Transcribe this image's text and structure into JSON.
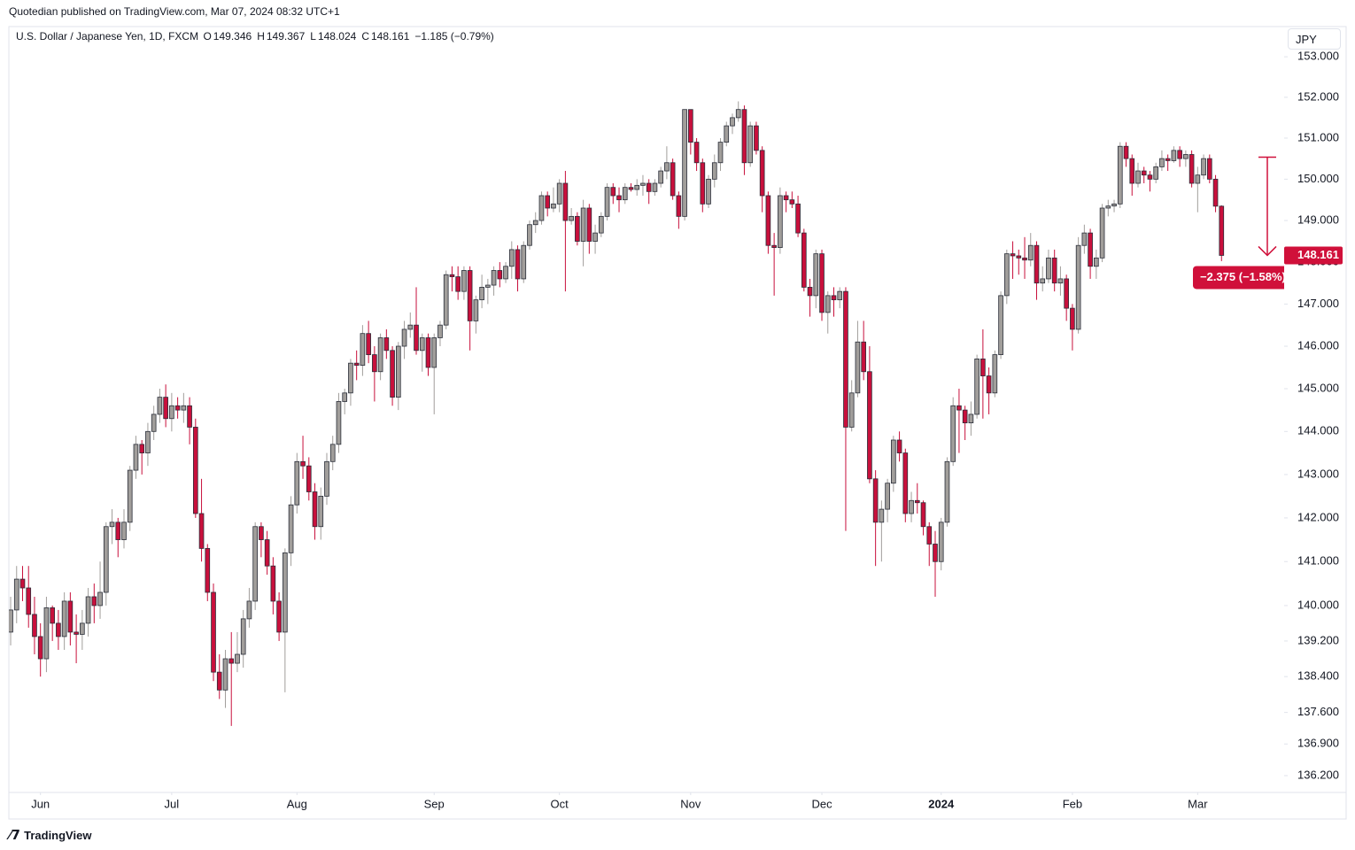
{
  "header": {
    "publisher": "Quotedian published on TradingView.com, Mar 07, 2024 08:32 UTC+1",
    "currency_button": "JPY",
    "footer": "TradingView"
  },
  "chart_data": {
    "type": "candlestick",
    "title": "U.S. Dollar / Japanese Yen, 1D, FXCM",
    "ohlc_labels": [
      "O",
      "H",
      "L",
      "C"
    ],
    "change_label": "−1.185 (−0.79%)",
    "up_color": "#a19e9b",
    "down_color": "#c8103c",
    "log": true,
    "grid": false,
    "candles": [
      [
        139.4,
        140.2,
        139.1,
        139.9
      ],
      [
        139.9,
        140.9,
        139.6,
        140.6
      ],
      [
        140.6,
        140.9,
        140.1,
        140.4
      ],
      [
        140.4,
        140.9,
        139.5,
        139.8
      ],
      [
        139.8,
        140.2,
        138.9,
        139.3
      ],
      [
        139.3,
        139.6,
        138.4,
        138.8
      ],
      [
        138.8,
        140.2,
        138.5,
        139.95
      ],
      [
        139.95,
        140.0,
        139.2,
        139.6
      ],
      [
        139.6,
        139.9,
        139.0,
        139.3
      ],
      [
        139.3,
        140.3,
        139.0,
        140.1
      ],
      [
        140.1,
        140.3,
        139.1,
        139.4
      ],
      [
        139.4,
        139.8,
        138.7,
        139.35
      ],
      [
        139.35,
        139.9,
        139.0,
        139.6
      ],
      [
        139.6,
        140.4,
        139.3,
        140.2
      ],
      [
        140.2,
        140.5,
        139.6,
        140.0
      ],
      [
        140.0,
        141.0,
        139.7,
        140.3
      ],
      [
        140.3,
        141.9,
        140.0,
        141.8
      ],
      [
        141.8,
        142.2,
        141.4,
        141.9
      ],
      [
        141.9,
        142.0,
        141.1,
        141.5
      ],
      [
        141.5,
        142.2,
        141.3,
        141.9
      ],
      [
        141.9,
        143.2,
        141.7,
        143.1
      ],
      [
        143.1,
        143.9,
        142.9,
        143.7
      ],
      [
        143.7,
        143.8,
        143.0,
        143.5
      ],
      [
        143.5,
        144.2,
        143.2,
        144.0
      ],
      [
        144.0,
        144.6,
        143.8,
        144.4
      ],
      [
        144.4,
        145.0,
        144.2,
        144.8
      ],
      [
        144.8,
        145.1,
        144.1,
        144.3
      ],
      [
        144.3,
        144.9,
        144.0,
        144.6
      ],
      [
        144.6,
        144.8,
        144.3,
        144.5
      ],
      [
        144.5,
        144.9,
        144.2,
        144.6
      ],
      [
        144.6,
        144.8,
        143.7,
        144.1
      ],
      [
        144.1,
        144.3,
        142.0,
        142.1
      ],
      [
        142.1,
        142.9,
        141.0,
        141.3
      ],
      [
        141.3,
        141.4,
        140.1,
        140.3
      ],
      [
        140.3,
        140.5,
        138.3,
        138.5
      ],
      [
        138.5,
        138.9,
        137.9,
        138.1
      ],
      [
        138.1,
        139.0,
        137.7,
        138.8
      ],
      [
        138.8,
        139.4,
        137.3,
        138.7
      ],
      [
        138.7,
        139.4,
        138.5,
        138.9
      ],
      [
        138.9,
        139.9,
        138.6,
        139.7
      ],
      [
        139.7,
        140.4,
        139.5,
        140.1
      ],
      [
        140.1,
        141.9,
        139.9,
        141.8
      ],
      [
        141.8,
        141.9,
        141.1,
        141.5
      ],
      [
        141.5,
        141.7,
        140.7,
        140.9
      ],
      [
        140.9,
        141.1,
        139.8,
        140.1
      ],
      [
        140.1,
        140.3,
        139.2,
        139.4
      ],
      [
        139.4,
        141.3,
        138.05,
        141.2
      ],
      [
        141.2,
        142.5,
        140.9,
        142.3
      ],
      [
        142.3,
        143.5,
        142.1,
        143.3
      ],
      [
        143.3,
        143.9,
        142.9,
        143.2
      ],
      [
        143.2,
        143.4,
        142.4,
        142.6
      ],
      [
        142.6,
        142.8,
        141.5,
        141.8
      ],
      [
        141.8,
        142.7,
        141.5,
        142.5
      ],
      [
        142.5,
        143.5,
        142.3,
        143.3
      ],
      [
        143.3,
        143.9,
        143.1,
        143.7
      ],
      [
        143.7,
        144.9,
        143.5,
        144.7
      ],
      [
        144.7,
        145.0,
        144.4,
        144.9
      ],
      [
        144.9,
        145.7,
        144.6,
        145.6
      ],
      [
        145.6,
        145.9,
        145.2,
        145.55
      ],
      [
        145.55,
        146.5,
        145.3,
        146.3
      ],
      [
        146.3,
        146.6,
        145.6,
        145.8
      ],
      [
        145.8,
        146.0,
        144.7,
        145.4
      ],
      [
        145.4,
        146.3,
        145.2,
        146.2
      ],
      [
        146.2,
        146.4,
        145.7,
        145.9
      ],
      [
        145.9,
        146.0,
        144.6,
        144.8
      ],
      [
        144.8,
        146.1,
        144.5,
        146.0
      ],
      [
        146.0,
        146.6,
        145.7,
        146.4
      ],
      [
        146.4,
        146.8,
        146.2,
        146.5
      ],
      [
        146.5,
        147.4,
        145.8,
        145.9
      ],
      [
        145.9,
        146.3,
        145.4,
        146.2
      ],
      [
        146.2,
        146.3,
        145.3,
        145.5
      ],
      [
        145.5,
        146.3,
        144.4,
        146.2
      ],
      [
        146.2,
        146.6,
        146.0,
        146.5
      ],
      [
        146.5,
        147.8,
        146.4,
        147.7
      ],
      [
        147.7,
        147.9,
        147.3,
        147.65
      ],
      [
        147.65,
        147.9,
        147.1,
        147.3
      ],
      [
        147.3,
        147.9,
        147.1,
        147.8
      ],
      [
        147.8,
        147.9,
        145.9,
        146.6
      ],
      [
        146.6,
        147.2,
        146.3,
        147.1
      ],
      [
        147.1,
        147.7,
        146.9,
        147.4
      ],
      [
        147.4,
        147.6,
        147.0,
        147.45
      ],
      [
        147.45,
        147.9,
        147.2,
        147.8
      ],
      [
        147.8,
        148.0,
        147.4,
        147.6
      ],
      [
        147.6,
        148.0,
        147.5,
        147.9
      ],
      [
        147.9,
        148.5,
        147.6,
        148.3
      ],
      [
        148.3,
        148.4,
        147.3,
        147.6
      ],
      [
        147.6,
        148.5,
        147.5,
        148.4
      ],
      [
        148.4,
        149.0,
        148.3,
        148.9
      ],
      [
        148.9,
        149.2,
        148.7,
        149.0
      ],
      [
        149.0,
        149.7,
        148.9,
        149.6
      ],
      [
        149.6,
        149.7,
        149.1,
        149.3
      ],
      [
        149.3,
        149.8,
        149.2,
        149.4
      ],
      [
        149.4,
        150.0,
        149.2,
        149.9
      ],
      [
        149.9,
        150.2,
        147.3,
        149.0
      ],
      [
        149.0,
        149.3,
        148.9,
        149.1
      ],
      [
        149.1,
        149.2,
        148.4,
        148.5
      ],
      [
        148.5,
        149.5,
        147.9,
        149.3
      ],
      [
        149.3,
        149.4,
        148.2,
        148.5
      ],
      [
        148.5,
        148.9,
        148.2,
        148.7
      ],
      [
        148.7,
        149.2,
        148.6,
        149.1
      ],
      [
        149.1,
        149.9,
        149.0,
        149.8
      ],
      [
        149.8,
        149.9,
        149.4,
        149.6
      ],
      [
        149.6,
        149.8,
        149.2,
        149.5
      ],
      [
        149.5,
        149.9,
        149.4,
        149.8
      ],
      [
        149.8,
        149.9,
        149.7,
        149.75
      ],
      [
        149.75,
        150.0,
        149.6,
        149.85
      ],
      [
        149.85,
        150.1,
        149.6,
        149.9
      ],
      [
        149.9,
        150.0,
        149.4,
        149.7
      ],
      [
        149.7,
        150.0,
        149.6,
        149.9
      ],
      [
        149.9,
        150.3,
        149.8,
        150.2
      ],
      [
        150.2,
        150.8,
        150.0,
        150.4
      ],
      [
        150.4,
        150.5,
        149.5,
        149.6
      ],
      [
        149.6,
        149.7,
        148.8,
        149.1
      ],
      [
        149.1,
        151.7,
        149.0,
        151.7
      ],
      [
        151.7,
        151.7,
        150.6,
        150.9
      ],
      [
        150.9,
        151.0,
        150.2,
        150.4
      ],
      [
        150.4,
        150.5,
        149.2,
        149.4
      ],
      [
        149.4,
        150.1,
        149.3,
        150.0
      ],
      [
        150.0,
        150.6,
        149.8,
        150.4
      ],
      [
        150.4,
        151.0,
        150.2,
        150.9
      ],
      [
        150.9,
        151.4,
        150.8,
        151.3
      ],
      [
        151.3,
        151.6,
        151.1,
        151.5
      ],
      [
        151.5,
        151.9,
        151.4,
        151.7
      ],
      [
        151.7,
        151.8,
        150.1,
        150.4
      ],
      [
        150.4,
        151.4,
        150.3,
        151.3
      ],
      [
        151.3,
        151.4,
        150.6,
        150.7
      ],
      [
        150.7,
        150.8,
        149.2,
        149.6
      ],
      [
        149.6,
        149.7,
        148.2,
        148.4
      ],
      [
        148.4,
        148.7,
        147.2,
        148.35
      ],
      [
        148.35,
        149.8,
        148.2,
        149.6
      ],
      [
        149.6,
        149.7,
        149.2,
        149.5
      ],
      [
        149.5,
        149.7,
        149.3,
        149.4
      ],
      [
        149.4,
        149.6,
        148.6,
        148.7
      ],
      [
        148.7,
        148.8,
        147.3,
        147.4
      ],
      [
        147.4,
        147.6,
        146.7,
        147.2
      ],
      [
        147.2,
        148.3,
        146.9,
        148.2
      ],
      [
        148.2,
        148.3,
        146.6,
        146.8
      ],
      [
        146.8,
        147.3,
        146.3,
        147.2
      ],
      [
        147.2,
        147.4,
        146.7,
        147.1
      ],
      [
        147.1,
        147.4,
        146.9,
        147.3
      ],
      [
        147.3,
        147.4,
        141.7,
        144.1
      ],
      [
        144.1,
        145.2,
        144.0,
        144.9
      ],
      [
        144.9,
        146.6,
        144.8,
        146.1
      ],
      [
        146.1,
        146.6,
        145.2,
        145.4
      ],
      [
        145.4,
        146.0,
        142.8,
        142.9
      ],
      [
        142.9,
        143.1,
        140.9,
        141.9
      ],
      [
        141.9,
        142.4,
        141.0,
        142.2
      ],
      [
        142.2,
        142.9,
        141.9,
        142.8
      ],
      [
        142.8,
        143.9,
        142.6,
        143.8
      ],
      [
        143.8,
        144.0,
        143.3,
        143.5
      ],
      [
        143.5,
        143.6,
        141.9,
        142.1
      ],
      [
        142.1,
        142.6,
        141.9,
        142.4
      ],
      [
        142.4,
        142.8,
        142.1,
        142.35
      ],
      [
        142.35,
        142.4,
        141.6,
        141.8
      ],
      [
        141.8,
        141.9,
        140.9,
        141.4
      ],
      [
        141.4,
        141.7,
        140.2,
        141.0
      ],
      [
        141.0,
        142.0,
        140.8,
        141.9
      ],
      [
        141.9,
        143.4,
        141.8,
        143.3
      ],
      [
        143.3,
        144.8,
        143.2,
        144.6
      ],
      [
        144.6,
        145.0,
        143.5,
        144.5
      ],
      [
        144.5,
        144.6,
        143.8,
        144.2
      ],
      [
        144.2,
        144.7,
        143.9,
        144.4
      ],
      [
        144.4,
        145.8,
        144.3,
        145.7
      ],
      [
        145.7,
        146.4,
        144.3,
        145.3
      ],
      [
        145.3,
        145.5,
        144.4,
        144.9
      ],
      [
        144.9,
        145.9,
        144.8,
        145.8
      ],
      [
        145.8,
        147.3,
        145.7,
        147.2
      ],
      [
        147.2,
        148.3,
        147.0,
        148.2
      ],
      [
        148.2,
        148.5,
        147.6,
        148.15
      ],
      [
        148.15,
        148.3,
        147.7,
        148.1
      ],
      [
        148.1,
        148.6,
        147.6,
        148.05
      ],
      [
        148.05,
        148.7,
        147.9,
        148.4
      ],
      [
        148.4,
        148.5,
        147.1,
        147.5
      ],
      [
        147.5,
        147.9,
        147.3,
        147.6
      ],
      [
        147.6,
        148.3,
        147.5,
        148.1
      ],
      [
        148.1,
        148.3,
        147.3,
        147.5
      ],
      [
        147.5,
        147.9,
        147.2,
        147.6
      ],
      [
        147.6,
        147.7,
        146.6,
        146.9
      ],
      [
        146.9,
        147.0,
        145.9,
        146.4
      ],
      [
        146.4,
        148.6,
        146.3,
        148.4
      ],
      [
        148.4,
        148.9,
        148.2,
        148.7
      ],
      [
        148.7,
        148.8,
        147.6,
        147.9
      ],
      [
        147.9,
        148.3,
        147.6,
        148.1
      ],
      [
        148.1,
        149.4,
        148.0,
        149.3
      ],
      [
        149.3,
        149.5,
        149.1,
        149.35
      ],
      [
        149.35,
        149.5,
        149.2,
        149.4
      ],
      [
        149.4,
        150.9,
        149.3,
        150.8
      ],
      [
        150.8,
        150.9,
        150.3,
        150.5
      ],
      [
        150.5,
        150.6,
        149.6,
        149.9
      ],
      [
        149.9,
        150.4,
        149.8,
        150.2
      ],
      [
        150.2,
        150.3,
        149.9,
        150.1
      ],
      [
        150.1,
        150.2,
        149.7,
        150.0
      ],
      [
        150.0,
        150.4,
        149.9,
        150.3
      ],
      [
        150.3,
        150.7,
        150.2,
        150.5
      ],
      [
        150.5,
        150.6,
        150.2,
        150.45
      ],
      [
        150.45,
        150.8,
        150.4,
        150.7
      ],
      [
        150.7,
        150.8,
        150.3,
        150.5
      ],
      [
        150.5,
        150.7,
        150.3,
        150.6
      ],
      [
        150.6,
        150.7,
        149.8,
        149.9
      ],
      [
        149.9,
        150.3,
        149.2,
        150.1
      ],
      [
        150.1,
        150.6,
        150.0,
        150.5
      ],
      [
        150.5,
        150.6,
        149.9,
        150.0
      ],
      [
        150.0,
        150.1,
        149.2,
        149.346
      ],
      [
        149.346,
        149.367,
        148.024,
        148.161
      ]
    ],
    "measure": {
      "from": 150.536,
      "to": 148.161,
      "label": "−2.375 (−1.58%)",
      "color": "#d0103a"
    },
    "xlim": [
      -0.3,
      213.5
    ],
    "xticks": [
      {
        "value": 5,
        "label": "Jun"
      },
      {
        "value": 27,
        "label": "Jul"
      },
      {
        "value": 48,
        "label": "Aug"
      },
      {
        "value": 71,
        "label": "Sep"
      },
      {
        "value": 92,
        "label": "Oct"
      },
      {
        "value": 114,
        "label": "Nov"
      },
      {
        "value": 136,
        "label": "Dec"
      },
      {
        "value": 156,
        "label": "2024"
      },
      {
        "value": 178,
        "label": "Feb"
      },
      {
        "value": 199,
        "label": "Mar"
      }
    ],
    "ylim": [
      135.83,
      153.75
    ],
    "yticks": [
      {
        "value": 153,
        "label": "153.000"
      },
      {
        "value": 152,
        "label": "152.000"
      },
      {
        "value": 151,
        "label": "151.000"
      },
      {
        "value": 150,
        "label": "150.000"
      },
      {
        "value": 149,
        "label": "149.000"
      },
      {
        "value": 148,
        "label": "148.000"
      },
      {
        "value": 147,
        "label": "147.000"
      },
      {
        "value": 146,
        "label": "146.000"
      },
      {
        "value": 145,
        "label": "145.000"
      },
      {
        "value": 144,
        "label": "144.000"
      },
      {
        "value": 143,
        "label": "143.000"
      },
      {
        "value": 142,
        "label": "142.000"
      },
      {
        "value": 141,
        "label": "141.000"
      },
      {
        "value": 140,
        "label": "140.000"
      },
      {
        "value": 139.2,
        "label": "139.200"
      },
      {
        "value": 138.4,
        "label": "138.400"
      },
      {
        "value": 137.6,
        "label": "137.600"
      },
      {
        "value": 136.9,
        "label": "136.900"
      },
      {
        "value": 136.2,
        "label": "136.200"
      }
    ]
  }
}
